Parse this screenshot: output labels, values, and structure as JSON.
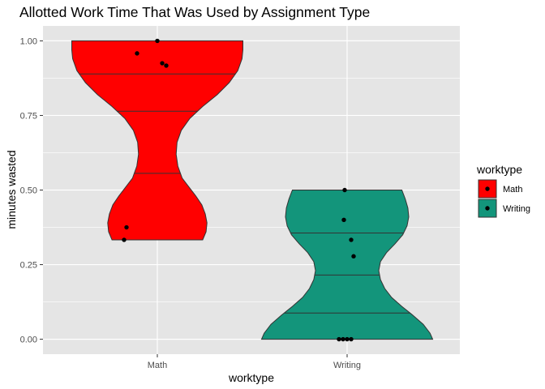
{
  "chart_data": {
    "type": "violin",
    "title": "Allotted Work Time That Was Used by Assignment Type",
    "xlabel": "worktype",
    "ylabel": "minutes wasted",
    "categories": [
      "Math",
      "Writing"
    ],
    "ylim": [
      -0.05,
      1.05
    ],
    "yticks": [
      0.0,
      0.25,
      0.5,
      0.75,
      1.0
    ],
    "ytick_labels": [
      "0.00",
      "0.25",
      "0.50",
      "0.75",
      "1.00"
    ],
    "grid": true,
    "legend": {
      "title": "worktype",
      "placement": "right",
      "entries": [
        "Math",
        "Writing"
      ]
    },
    "colors": {
      "Math": "#ff0000",
      "Writing": "#13957b",
      "panel": "#e5e5e5",
      "grid": "#ffffff",
      "outline": "#333333",
      "point": "#000000"
    },
    "series": [
      {
        "name": "Math",
        "range": [
          0.333,
          1.0
        ],
        "quantiles": [
          0.556,
          0.764,
          0.889
        ],
        "points": [
          1.0,
          0.958,
          0.925,
          0.917,
          0.375,
          0.333
        ],
        "density": [
          [
            0.333,
            0.53
          ],
          [
            0.36,
            0.57
          ],
          [
            0.39,
            0.58
          ],
          [
            0.42,
            0.56
          ],
          [
            0.45,
            0.52
          ],
          [
            0.48,
            0.45
          ],
          [
            0.51,
            0.37
          ],
          [
            0.54,
            0.29
          ],
          [
            0.58,
            0.24
          ],
          [
            0.62,
            0.22
          ],
          [
            0.66,
            0.23
          ],
          [
            0.7,
            0.28
          ],
          [
            0.74,
            0.38
          ],
          [
            0.78,
            0.53
          ],
          [
            0.82,
            0.7
          ],
          [
            0.86,
            0.84
          ],
          [
            0.9,
            0.94
          ],
          [
            0.94,
            0.99
          ],
          [
            0.97,
            1.0
          ],
          [
            1.0,
            1.0
          ]
        ]
      },
      {
        "name": "Writing",
        "range": [
          0.0,
          0.5
        ],
        "quantiles": [
          0.088,
          0.215,
          0.356
        ],
        "points": [
          0.5,
          0.4,
          0.333,
          0.278,
          0.0,
          0.0,
          0.0,
          0.0
        ],
        "density": [
          [
            0.0,
            1.0
          ],
          [
            0.02,
            0.97
          ],
          [
            0.05,
            0.89
          ],
          [
            0.08,
            0.77
          ],
          [
            0.11,
            0.64
          ],
          [
            0.14,
            0.52
          ],
          [
            0.17,
            0.44
          ],
          [
            0.2,
            0.39
          ],
          [
            0.23,
            0.37
          ],
          [
            0.26,
            0.39
          ],
          [
            0.29,
            0.46
          ],
          [
            0.32,
            0.56
          ],
          [
            0.35,
            0.65
          ],
          [
            0.38,
            0.7
          ],
          [
            0.41,
            0.72
          ],
          [
            0.44,
            0.71
          ],
          [
            0.47,
            0.68
          ],
          [
            0.5,
            0.64
          ]
        ]
      }
    ]
  }
}
